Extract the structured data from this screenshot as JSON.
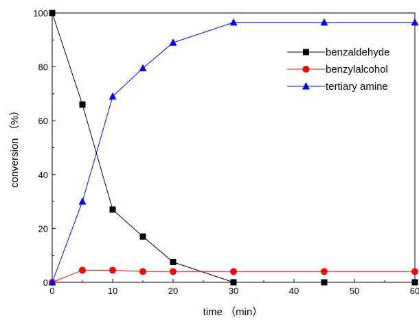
{
  "chart_data": {
    "type": "line",
    "title": "",
    "xlabel": "time （min）",
    "ylabel": "conversion （%）",
    "xlim": [
      0,
      60
    ],
    "ylim": [
      0,
      100
    ],
    "xticks": [
      0,
      10,
      20,
      30,
      40,
      50,
      60
    ],
    "yticks": [
      0,
      20,
      40,
      60,
      80,
      100
    ],
    "grid": false,
    "legend_position": "top-right",
    "x": [
      0,
      5,
      10,
      15,
      20,
      30,
      45,
      60
    ],
    "series": [
      {
        "name": "benzaldehyde",
        "values": [
          100,
          66,
          27,
          17,
          7.5,
          0,
          0,
          0
        ],
        "color": "#000000",
        "marker": "square"
      },
      {
        "name": "benzylalcohol",
        "values": [
          0,
          4.5,
          4.5,
          4,
          4,
          4,
          4,
          4
        ],
        "color": "#ff0000",
        "marker": "circle"
      },
      {
        "name": "tertiary amine",
        "values": [
          0,
          30,
          69,
          79.5,
          89,
          96.5,
          96.5,
          96.5
        ],
        "color": "#0000ff",
        "marker": "triangle"
      }
    ]
  }
}
